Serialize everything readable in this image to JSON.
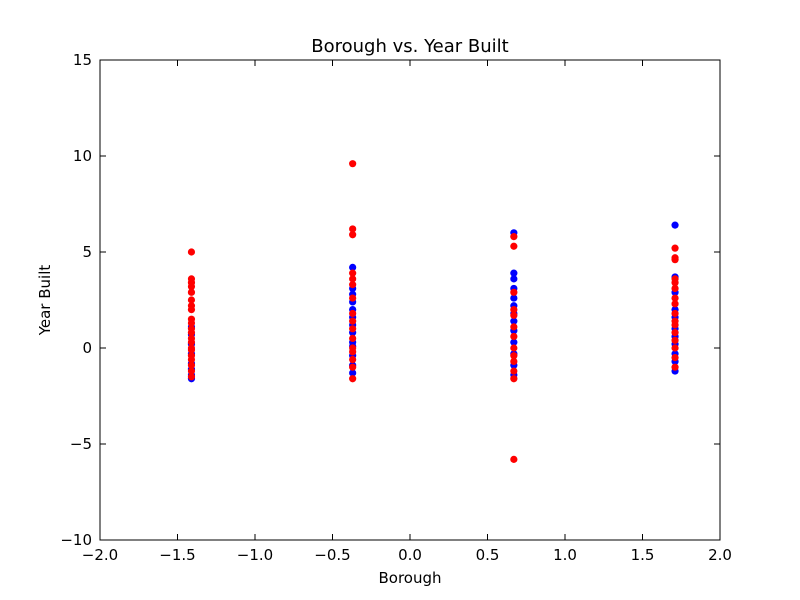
{
  "chart_data": {
    "type": "scatter",
    "title": "Borough vs. Year Built",
    "xlabel": "Borough",
    "ylabel": "Year Built",
    "xlim": [
      -2.0,
      2.0
    ],
    "ylim": [
      -10,
      15
    ],
    "x_ticks": [
      -2.0,
      -1.5,
      -1.0,
      -0.5,
      0.0,
      0.5,
      1.0,
      1.5,
      2.0
    ],
    "x_tick_labels": [
      "−2.0",
      "−1.5",
      "−1.0",
      "−0.5",
      "0.0",
      "0.5",
      "1.0",
      "1.5",
      "2.0"
    ],
    "y_ticks": [
      -10,
      -5,
      0,
      5,
      10,
      15
    ],
    "y_tick_labels": [
      "−10",
      "−5",
      "0",
      "5",
      "10",
      "15"
    ],
    "grid": false,
    "series": [
      {
        "color": "#0000ff",
        "points": [
          [
            -1.41,
            -1.6
          ],
          [
            -1.41,
            -1.4
          ],
          [
            -1.41,
            -1.1
          ],
          [
            -1.41,
            -0.8
          ],
          [
            -1.41,
            -0.3
          ],
          [
            -1.41,
            0.2
          ],
          [
            -1.41,
            0.7
          ],
          [
            -1.41,
            1.1
          ],
          [
            -0.37,
            -1.3
          ],
          [
            -0.37,
            -0.9
          ],
          [
            -0.37,
            -0.4
          ],
          [
            -0.37,
            0.1
          ],
          [
            -0.37,
            0.3
          ],
          [
            -0.37,
            0.8
          ],
          [
            -0.37,
            1.2
          ],
          [
            -0.37,
            1.6
          ],
          [
            -0.37,
            2.0
          ],
          [
            -0.37,
            2.4
          ],
          [
            -0.37,
            2.8
          ],
          [
            -0.37,
            3.1
          ],
          [
            -0.37,
            4.2
          ],
          [
            0.67,
            -1.4
          ],
          [
            0.67,
            -0.9
          ],
          [
            0.67,
            -0.3
          ],
          [
            0.67,
            0.3
          ],
          [
            0.67,
            0.9
          ],
          [
            0.67,
            1.4
          ],
          [
            0.67,
            1.8
          ],
          [
            0.67,
            2.2
          ],
          [
            0.67,
            2.6
          ],
          [
            0.67,
            3.1
          ],
          [
            0.67,
            3.6
          ],
          [
            0.67,
            3.9
          ],
          [
            0.67,
            6.0
          ],
          [
            1.71,
            -1.2
          ],
          [
            1.71,
            -0.7
          ],
          [
            1.71,
            -0.3
          ],
          [
            1.71,
            0.2
          ],
          [
            1.71,
            0.6
          ],
          [
            1.71,
            1.0
          ],
          [
            1.71,
            1.6
          ],
          [
            1.71,
            2.0
          ],
          [
            1.71,
            2.9
          ],
          [
            1.71,
            3.7
          ],
          [
            1.71,
            6.4
          ]
        ]
      },
      {
        "color": "#ff0000",
        "points": [
          [
            -1.41,
            -1.5
          ],
          [
            -1.41,
            -1.2
          ],
          [
            -1.41,
            -0.9
          ],
          [
            -1.41,
            -0.6
          ],
          [
            -1.41,
            -0.4
          ],
          [
            -1.41,
            -0.1
          ],
          [
            -1.41,
            0.0
          ],
          [
            -1.41,
            0.3
          ],
          [
            -1.41,
            0.5
          ],
          [
            -1.41,
            0.8
          ],
          [
            -1.41,
            1.0
          ],
          [
            -1.41,
            1.3
          ],
          [
            -1.41,
            1.5
          ],
          [
            -1.41,
            2.0
          ],
          [
            -1.41,
            2.2
          ],
          [
            -1.41,
            2.5
          ],
          [
            -1.41,
            2.9
          ],
          [
            -1.41,
            3.2
          ],
          [
            -1.41,
            3.4
          ],
          [
            -1.41,
            3.6
          ],
          [
            -1.41,
            5.0
          ],
          [
            -0.37,
            -1.6
          ],
          [
            -0.37,
            -1.0
          ],
          [
            -0.37,
            -0.6
          ],
          [
            -0.37,
            -0.2
          ],
          [
            -0.37,
            0.0
          ],
          [
            -0.37,
            0.5
          ],
          [
            -0.37,
            1.0
          ],
          [
            -0.37,
            1.4
          ],
          [
            -0.37,
            1.8
          ],
          [
            -0.37,
            2.6
          ],
          [
            -0.37,
            3.3
          ],
          [
            -0.37,
            3.6
          ],
          [
            -0.37,
            3.9
          ],
          [
            -0.37,
            5.9
          ],
          [
            -0.37,
            6.2
          ],
          [
            -0.37,
            9.6
          ],
          [
            0.67,
            -1.6
          ],
          [
            0.67,
            -1.2
          ],
          [
            0.67,
            -0.7
          ],
          [
            0.67,
            -0.4
          ],
          [
            0.67,
            0.0
          ],
          [
            0.67,
            0.6
          ],
          [
            0.67,
            1.1
          ],
          [
            0.67,
            1.7
          ],
          [
            0.67,
            2.0
          ],
          [
            0.67,
            2.9
          ],
          [
            0.67,
            5.3
          ],
          [
            0.67,
            5.8
          ],
          [
            0.67,
            -5.8
          ],
          [
            1.71,
            -1.0
          ],
          [
            1.71,
            -0.5
          ],
          [
            1.71,
            0.0
          ],
          [
            1.71,
            0.4
          ],
          [
            1.71,
            0.8
          ],
          [
            1.71,
            1.2
          ],
          [
            1.71,
            1.4
          ],
          [
            1.71,
            1.8
          ],
          [
            1.71,
            2.3
          ],
          [
            1.71,
            2.6
          ],
          [
            1.71,
            3.1
          ],
          [
            1.71,
            3.4
          ],
          [
            1.71,
            3.6
          ],
          [
            1.71,
            4.6
          ],
          [
            1.71,
            4.7
          ],
          [
            1.71,
            5.2
          ]
        ]
      }
    ]
  }
}
